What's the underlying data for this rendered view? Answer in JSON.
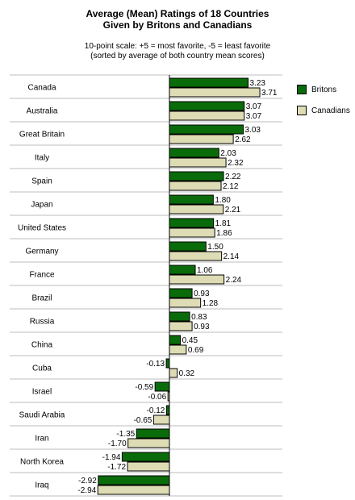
{
  "chart_data": {
    "type": "bar",
    "orientation": "horizontal",
    "title": [
      "Average (Mean) Ratings of 18 Countries",
      "Given by Britons and Canadians"
    ],
    "subtitle": [
      "10-point scale: +5 = most favorite, -5 = least favorite",
      "(sorted by average of both country mean scores)"
    ],
    "categories": [
      "Canada",
      "Australia",
      "Great Britain",
      "Italy",
      "Spain",
      "Japan",
      "United States",
      "Germany",
      "France",
      "Brazil",
      "Russia",
      "China",
      "Cuba",
      "Israel",
      "Saudi Arabia",
      "Iran",
      "North Korea",
      "Iraq"
    ],
    "series": [
      {
        "name": "Britons",
        "color": "#0a6b0a",
        "values": [
          3.23,
          3.07,
          3.03,
          2.03,
          2.22,
          1.8,
          1.81,
          1.5,
          1.06,
          0.93,
          0.83,
          0.45,
          -0.13,
          -0.59,
          -0.12,
          -1.35,
          -1.94,
          -2.92
        ]
      },
      {
        "name": "Canadians",
        "color": "#dedcb4",
        "values": [
          3.71,
          3.07,
          2.62,
          2.32,
          2.12,
          2.21,
          1.86,
          2.14,
          2.24,
          1.28,
          0.93,
          0.69,
          0.32,
          -0.06,
          -0.65,
          -1.7,
          -1.72,
          -2.94
        ]
      }
    ],
    "grid": "horizontal separators",
    "legend_position": "right"
  }
}
